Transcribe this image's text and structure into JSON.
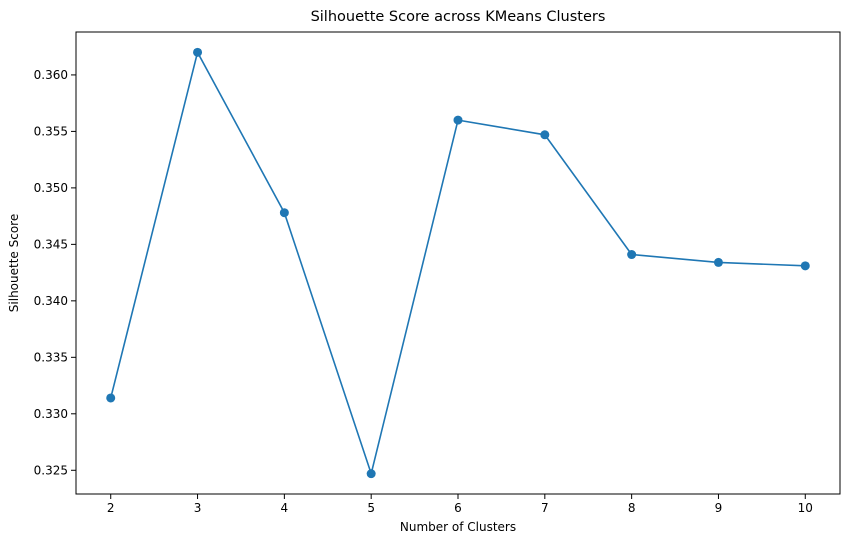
{
  "chart_data": {
    "type": "line",
    "title": "Silhouette Score across KMeans Clusters",
    "xlabel": "Number of Clusters",
    "ylabel": "Silhouette Score",
    "x": [
      2,
      3,
      4,
      5,
      6,
      7,
      8,
      9,
      10
    ],
    "series": [
      {
        "values": [
          0.3314,
          0.362,
          0.3478,
          0.3247,
          0.356,
          0.3547,
          0.3441,
          0.3434,
          0.3431
        ],
        "color": "#1f77b4",
        "marker": "circle"
      }
    ],
    "xlim": [
      1.6,
      10.4
    ],
    "ylim": [
      0.3229,
      0.3638
    ],
    "xticks": [
      2,
      3,
      4,
      5,
      6,
      7,
      8,
      9,
      10
    ],
    "yticks": [
      "0.325",
      "0.330",
      "0.335",
      "0.340",
      "0.345",
      "0.350",
      "0.355",
      "0.360"
    ],
    "grid": false,
    "legend": false
  }
}
